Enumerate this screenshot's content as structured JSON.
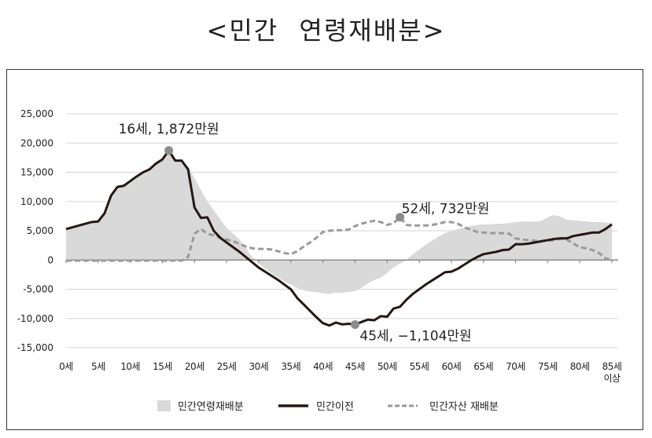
{
  "title": "<민간 연령재배분>",
  "chart_data": {
    "type": "area+line",
    "title": "<민간 연령재배분>",
    "xlabel": "",
    "ylabel": "",
    "ylim": [
      -15000,
      25000
    ],
    "yticks": [
      25000,
      20000,
      15000,
      10000,
      5000,
      0,
      -5000,
      -10000,
      -15000
    ],
    "ytick_labels": [
      "25,000",
      "20,000",
      "15,000",
      "10,000",
      "5,000",
      "0",
      "-5,000",
      "-10,000",
      "-15,000"
    ],
    "xtick_labels": [
      "0세",
      "5세",
      "10세",
      "15세",
      "20세",
      "25세",
      "30세",
      "35세",
      "40세",
      "45세",
      "50세",
      "55세",
      "60세",
      "65세",
      "70세",
      "75세",
      "80세",
      "85세\n이상"
    ],
    "x": [
      0,
      1,
      2,
      3,
      4,
      5,
      6,
      7,
      8,
      9,
      10,
      11,
      12,
      13,
      14,
      15,
      16,
      17,
      18,
      19,
      20,
      21,
      22,
      23,
      24,
      25,
      26,
      27,
      28,
      29,
      30,
      31,
      32,
      33,
      34,
      35,
      36,
      37,
      38,
      39,
      40,
      41,
      42,
      43,
      44,
      45,
      46,
      47,
      48,
      49,
      50,
      51,
      52,
      53,
      54,
      55,
      56,
      57,
      58,
      59,
      60,
      61,
      62,
      63,
      64,
      65,
      66,
      67,
      68,
      69,
      70,
      71,
      72,
      73,
      74,
      75,
      76,
      77,
      78,
      79,
      80,
      81,
      82,
      83,
      84,
      85
    ],
    "grid": true,
    "legend_position": "bottom",
    "series": [
      {
        "name": "민간연령재배분",
        "type": "area",
        "color": "#d9d9d9",
        "values": [
          5300,
          5600,
          5900,
          6200,
          6500,
          6700,
          8000,
          11000,
          12500,
          12700,
          13500,
          14300,
          15000,
          15500,
          16500,
          17200,
          18720,
          17200,
          17000,
          16000,
          14000,
          12000,
          10000,
          8500,
          7000,
          5500,
          4500,
          3500,
          2000,
          500,
          -500,
          -1500,
          -2300,
          -3000,
          -3700,
          -4200,
          -4800,
          -5200,
          -5400,
          -5500,
          -5700,
          -5800,
          -5600,
          -5600,
          -5500,
          -5300,
          -4800,
          -4000,
          -3400,
          -3000,
          -2200,
          -1200,
          -600,
          0,
          1000,
          1800,
          2600,
          3300,
          4000,
          4600,
          5000,
          5300,
          5500,
          5800,
          6000,
          6100,
          6100,
          6200,
          6200,
          6300,
          6500,
          6600,
          6600,
          6600,
          6700,
          7300,
          7700,
          7400,
          6900,
          6800,
          6700,
          6600,
          6500,
          6500,
          6400,
          6300
        ]
      },
      {
        "name": "민간이전",
        "type": "line",
        "color": "#231816",
        "values": [
          5300,
          5600,
          5900,
          6200,
          6500,
          6600,
          8000,
          11000,
          12500,
          12700,
          13500,
          14300,
          15000,
          15500,
          16500,
          17200,
          18720,
          17000,
          17000,
          15500,
          9000,
          7200,
          7300,
          5000,
          3800,
          3000,
          2200,
          1400,
          500,
          -400,
          -1300,
          -2000,
          -2700,
          -3400,
          -4200,
          -5000,
          -6500,
          -7600,
          -8700,
          -9800,
          -10800,
          -11200,
          -10700,
          -11000,
          -10900,
          -11040,
          -10600,
          -10200,
          -10300,
          -9600,
          -9700,
          -8300,
          -8000,
          -6800,
          -5800,
          -5000,
          -4200,
          -3500,
          -2800,
          -2100,
          -2000,
          -1500,
          -800,
          -100,
          500,
          1000,
          1200,
          1400,
          1700,
          1800,
          2700,
          2700,
          2800,
          3000,
          3200,
          3400,
          3600,
          3700,
          3700,
          4100,
          4300,
          4500,
          4700,
          4700,
          5300,
          6100
        ]
      },
      {
        "name": "민간자산 재배분",
        "type": "dashed-line",
        "color": "#9a9a9a",
        "values": [
          -100,
          -100,
          -100,
          -100,
          -100,
          -100,
          -100,
          -100,
          -100,
          -100,
          -100,
          -100,
          -100,
          -100,
          -100,
          -100,
          -100,
          -100,
          -100,
          500,
          4500,
          5300,
          4500,
          4200,
          3800,
          3500,
          3200,
          2800,
          2300,
          2000,
          1900,
          1900,
          1800,
          1500,
          1200,
          1000,
          1500,
          2300,
          3000,
          3800,
          4800,
          5000,
          5100,
          5100,
          5200,
          5800,
          6200,
          6500,
          6700,
          6500,
          6000,
          6300,
          7320,
          6000,
          5900,
          5900,
          5900,
          6000,
          6200,
          6500,
          6500,
          6200,
          5600,
          5200,
          4800,
          4700,
          4600,
          4600,
          4600,
          4500,
          3700,
          3500,
          3400,
          3300,
          3200,
          3300,
          3400,
          3600,
          3500,
          2800,
          2200,
          2000,
          1700,
          1200,
          300,
          -100
        ]
      }
    ],
    "annotations": [
      {
        "series": "민간연령재배분",
        "x": 16,
        "y": 18720,
        "text": "16세, 1,872만원"
      },
      {
        "series": "민간자산 재배분",
        "x": 52,
        "y": 7320,
        "text": "52세, 732만원"
      },
      {
        "series": "민간이전",
        "x": 45,
        "y": -11040,
        "text": "45세, −1,104만원"
      }
    ]
  }
}
